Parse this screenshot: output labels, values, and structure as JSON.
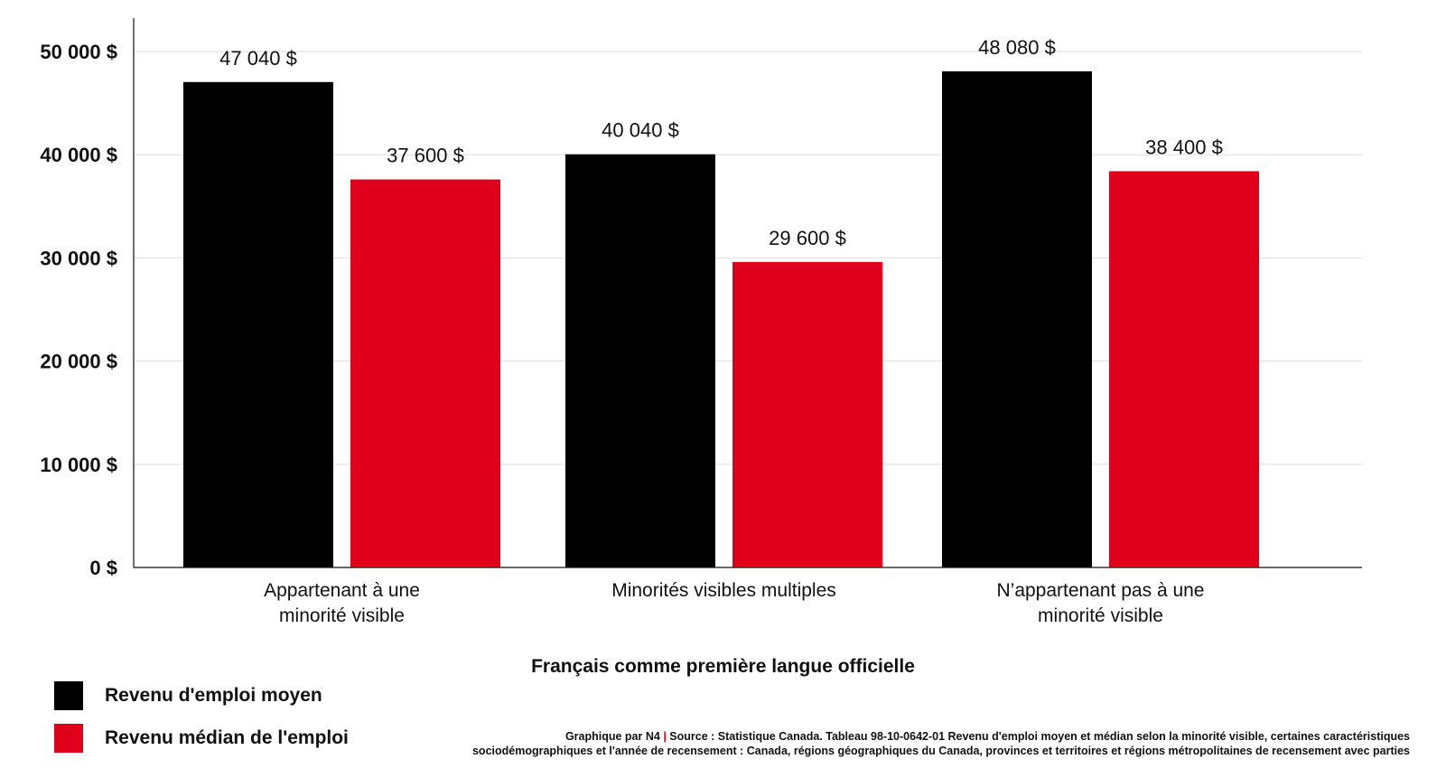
{
  "chart_data": {
    "type": "bar",
    "categories": [
      [
        "Appartenant à une",
        "minorité visible"
      ],
      [
        "Minorités visibles multiples"
      ],
      [
        "N’appartenant pas à une",
        "minorité visible"
      ]
    ],
    "series": [
      {
        "name": "Revenu d'emploi moyen",
        "color": "#000000",
        "values": [
          47040,
          40040,
          48080
        ],
        "labels": [
          "47 040 $",
          "40 040 $",
          "48 080 $"
        ]
      },
      {
        "name": "Revenu médian de l'emploi",
        "color": "#e0001b",
        "values": [
          37600,
          29600,
          38400
        ],
        "labels": [
          "37 600 $",
          "29 600 $",
          "38 400 $"
        ]
      }
    ],
    "yticks": [
      0,
      10000,
      20000,
      30000,
      40000,
      50000
    ],
    "ytick_labels": [
      "0 $",
      "10 000 $",
      "20 000 $",
      "30 000 $",
      "40 000 $",
      "50 000 $"
    ],
    "ylim": [
      0,
      50000
    ],
    "xlabel": "Français comme première langue officielle",
    "grid": true,
    "legend_position": "bottom-left"
  },
  "source": {
    "credit": "Graphique par N4",
    "separator": "|",
    "text_line1": "Source : Statistique Canada. Tableau 98-10-0642-01 Revenu d'emploi moyen et médian selon la minorité visible, certaines caractéristiques",
    "text_line2": "sociodémographiques et l'année de recensement : Canada, régions géographiques du Canada, provinces et territoires et régions métropolitaines de recensement avec parties"
  }
}
